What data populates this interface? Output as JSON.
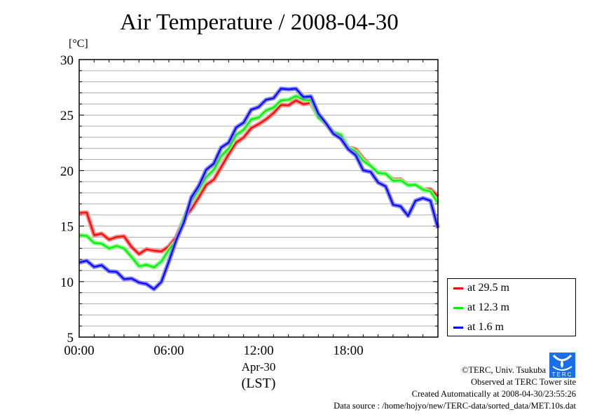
{
  "chart_data": {
    "type": "line",
    "title": "Air Temperature / 2008-04-30",
    "ylabel": "[°C]",
    "xlabel": "Apr-30",
    "xlabel2": "(LST)",
    "ylim": [
      5,
      30
    ],
    "xlim_hours": [
      0,
      24
    ],
    "yticks": [
      "5",
      "10",
      "15",
      "20",
      "25",
      "30"
    ],
    "xticks": [
      "00:00",
      "06:00",
      "12:00",
      "18:00"
    ],
    "grid": true,
    "legend_position": "right-bottom",
    "x_hours_step": 0.5,
    "series": [
      {
        "name": "at 29.5 m",
        "color": "#ff0000",
        "halo": "#ff8080",
        "values": [
          16.3,
          16.1,
          14.3,
          14.2,
          13.9,
          13.9,
          14.2,
          13.0,
          12.6,
          12.8,
          12.9,
          12.6,
          13.3,
          13.9,
          15.8,
          16.4,
          17.7,
          18.6,
          19.3,
          20.2,
          21.6,
          22.4,
          23.1,
          23.7,
          24.3,
          24.5,
          25.3,
          25.8,
          26.0,
          26.2,
          26.1,
          26.0,
          24.9,
          24.1,
          23.5,
          23.1,
          22.2,
          21.8,
          21.2,
          20.3,
          19.9,
          19.6,
          19.3,
          19.1,
          18.8,
          18.6,
          18.4,
          18.2,
          17.8
        ]
      },
      {
        "name": "at 12.3 m",
        "color": "#00ee00",
        "halo": "#80ff80",
        "values": [
          14.3,
          14.0,
          13.6,
          13.3,
          13.1,
          13.1,
          13.1,
          12.1,
          11.5,
          11.4,
          11.4,
          11.7,
          13.0,
          13.6,
          15.8,
          17.1,
          18.4,
          19.3,
          20.2,
          21.2,
          22.1,
          23.1,
          23.8,
          24.5,
          24.9,
          25.3,
          25.8,
          26.2,
          26.5,
          26.6,
          26.5,
          26.2,
          24.9,
          24.1,
          23.6,
          23.1,
          22.2,
          21.6,
          21.0,
          20.3,
          19.9,
          19.6,
          19.2,
          19.0,
          18.8,
          18.6,
          18.4,
          18.0,
          17.2
        ]
      },
      {
        "name": "at 1.6 m",
        "color": "#0000ff",
        "halo": "#8080ff",
        "values": [
          11.9,
          11.7,
          11.5,
          11.3,
          11.1,
          10.7,
          10.4,
          10.1,
          10.1,
          9.6,
          9.5,
          9.8,
          12.0,
          13.6,
          15.5,
          17.4,
          18.8,
          19.9,
          20.8,
          21.9,
          22.7,
          23.7,
          24.5,
          25.3,
          25.9,
          26.2,
          26.7,
          27.2,
          27.5,
          27.2,
          26.8,
          26.5,
          25.3,
          24.1,
          23.5,
          22.7,
          22.1,
          21.2,
          20.2,
          19.7,
          19.1,
          18.4,
          17.1,
          16.6,
          16.1,
          17.1,
          17.7,
          17.1,
          15.0
        ]
      }
    ]
  },
  "footer": {
    "copyright": "©TERC, Univ. Tsukuba",
    "observed": "Observed at TERC Tower site",
    "created": "Created Automatically at 2008-04-30/23:55:26",
    "source": "Data source : /home/hojyo/new/TERC-data/sorted_data/MET.10s.dat",
    "logo_text": "TERC"
  }
}
